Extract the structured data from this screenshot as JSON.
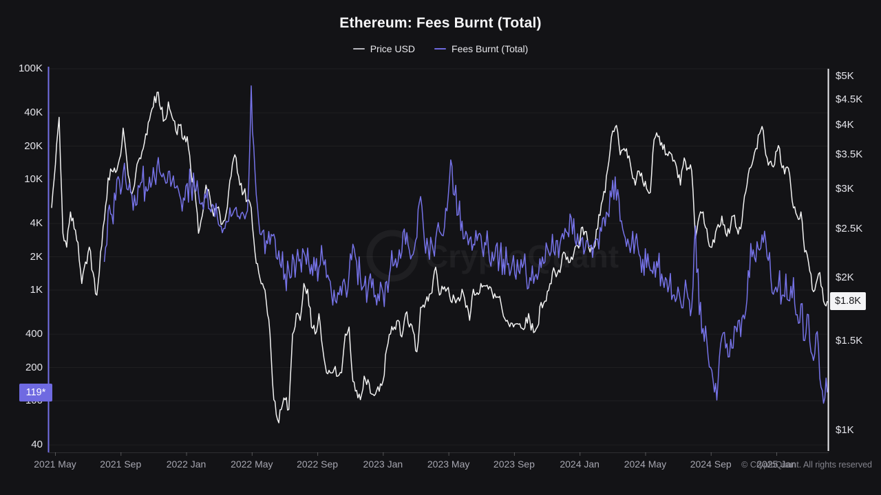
{
  "title": "Ethereum: Fees Burnt (Total)",
  "legend": [
    {
      "label": "Price USD",
      "color": "#b9b9bf"
    },
    {
      "label": "Fees Burnt (Total)",
      "color": "#6f6ae1"
    }
  ],
  "watermark": "CryptoQuant",
  "footer": "© CryptoQuant. All rights reserved",
  "colors": {
    "background": "#131316",
    "price_line": "#f3f3f3",
    "fees_line": "#7673e8",
    "axis_left": "#7470e8",
    "axis_right": "#ececf0",
    "grid": "rgba(255,255,255,0.05)"
  },
  "axes": {
    "left": {
      "scale": "log",
      "ticks": [
        {
          "label": "100K",
          "value": 100000
        },
        {
          "label": "40K",
          "value": 40000
        },
        {
          "label": "20K",
          "value": 20000
        },
        {
          "label": "10K",
          "value": 10000
        },
        {
          "label": "4K",
          "value": 4000
        },
        {
          "label": "2K",
          "value": 2000
        },
        {
          "label": "1K",
          "value": 1000
        },
        {
          "label": "400",
          "value": 400
        },
        {
          "label": "200",
          "value": 200
        },
        {
          "label": "100",
          "value": 100
        },
        {
          "label": "40",
          "value": 40
        }
      ],
      "current_badge": {
        "label": "119*",
        "value": 119,
        "bg": "#6f6ae1",
        "fg": "#ffffff"
      }
    },
    "right": {
      "scale": "log",
      "ticks": [
        {
          "label": "$5K",
          "value": 5000
        },
        {
          "label": "$4.5K",
          "value": 4500
        },
        {
          "label": "$4K",
          "value": 4000
        },
        {
          "label": "$3.5K",
          "value": 3500
        },
        {
          "label": "$3K",
          "value": 3000
        },
        {
          "label": "$2.5K",
          "value": 2500
        },
        {
          "label": "$2K",
          "value": 2000
        },
        {
          "label": "$1.5K",
          "value": 1500
        },
        {
          "label": "$1K",
          "value": 1000
        }
      ],
      "current_badge": {
        "label": "$1.8K",
        "value": 1800,
        "bg": "#f4f4f6",
        "fg": "#18181b"
      }
    },
    "x": {
      "labels": [
        "2021 May",
        "2021 Sep",
        "2022 Jan",
        "2022 May",
        "2022 Sep",
        "2023 Jan",
        "2023 May",
        "2023 Sep",
        "2024 Jan",
        "2024 May",
        "2024 Sep",
        "2025 Jan"
      ]
    }
  },
  "chart_data": {
    "type": "line",
    "title": "Ethereum: Fees Burnt (Total)",
    "x_start": "2021-04-25",
    "x_interval": "weekly",
    "x_tick_labels": [
      "2021 May",
      "2021 Sep",
      "2022 Jan",
      "2022 May",
      "2022 Sep",
      "2023 Jan",
      "2023 May",
      "2023 Sep",
      "2024 Jan",
      "2024 May",
      "2024 Sep",
      "2025 Jan"
    ],
    "grid": "horizontal-faint",
    "legend_position": "top",
    "left_axis": {
      "label": "Fees Burnt (Total)",
      "scale": "log",
      "tick_values": [
        100000,
        40000,
        20000,
        10000,
        4000,
        2000,
        1000,
        400,
        200,
        100,
        40
      ],
      "last_value": 119
    },
    "right_axis": {
      "label": "Price USD",
      "scale": "log",
      "tick_values": [
        5000,
        4500,
        4000,
        3500,
        3000,
        2500,
        2000,
        1500,
        1000
      ],
      "last_value": 1800
    },
    "series": [
      {
        "name": "Price USD",
        "axis": "right",
        "unit": "USD",
        "color": "#f3f3f3",
        "values": [
          2750,
          3350,
          4150,
          2450,
          2300,
          2700,
          2500,
          2350,
          1950,
          2150,
          2300,
          2050,
          1850,
          2250,
          2600,
          3150,
          3250,
          3230,
          3430,
          3950,
          3400,
          2950,
          3050,
          3400,
          3550,
          3850,
          4100,
          4350,
          4650,
          4300,
          4100,
          4450,
          4150,
          3900,
          4000,
          3750,
          3800,
          3250,
          3000,
          2450,
          2650,
          3050,
          2900,
          2650,
          2750,
          2550,
          2600,
          2950,
          3350,
          3450,
          3050,
          2950,
          2850,
          2750,
          2250,
          2050,
          1950,
          1800,
          1550,
          1150,
          1050,
          1100,
          1150,
          1100,
          1550,
          1700,
          1650,
          1950,
          1900,
          1600,
          1550,
          1700,
          1450,
          1300,
          1300,
          1320,
          1280,
          1300,
          1550,
          1600,
          1250,
          1200,
          1150,
          1280,
          1260,
          1180,
          1180,
          1195,
          1250,
          1450,
          1550,
          1600,
          1650,
          1530,
          1700,
          1600,
          1570,
          1430,
          1750,
          1750,
          1800,
          1870,
          2100,
          1850,
          1900,
          1900,
          1800,
          1820,
          1830,
          1900,
          1750,
          1650,
          1900,
          1870,
          1950,
          1930,
          1900,
          1870,
          1830,
          1840,
          1680,
          1650,
          1630,
          1620,
          1620,
          1590,
          1670,
          1650,
          1560,
          1600,
          1790,
          1800,
          1890,
          2050,
          2010,
          2050,
          2250,
          2200,
          2200,
          2300,
          2290,
          2520,
          2470,
          2250,
          2290,
          2500,
          2800,
          2950,
          3400,
          3900,
          4000,
          3500,
          3600,
          3450,
          3250,
          3050,
          3250,
          3100,
          3000,
          2950,
          3750,
          3800,
          3700,
          3500,
          3550,
          3400,
          3300,
          3050,
          3450,
          3300,
          3250,
          2400,
          2650,
          2700,
          2500,
          2300,
          2350,
          2550,
          2650,
          2450,
          2450,
          2650,
          2500,
          2500,
          2900,
          3200,
          3350,
          3600,
          3850,
          3900,
          3450,
          3400,
          3350,
          3650,
          3300,
          3300,
          3200,
          2750,
          2650,
          2700,
          2250,
          2150,
          1900,
          1950,
          2050,
          1800,
          1800
        ]
      },
      {
        "name": "Fees Burnt (Total)",
        "axis": "left",
        "unit": "ETH",
        "color": "#7673e8",
        "values": [
          null,
          null,
          null,
          null,
          null,
          null,
          null,
          null,
          null,
          null,
          null,
          null,
          null,
          null,
          1800,
          5200,
          4800,
          6500,
          9800,
          11500,
          8200,
          7800,
          7200,
          8800,
          9500,
          8600,
          10500,
          12800,
          13200,
          11000,
          10200,
          11800,
          9600,
          8400,
          7200,
          6800,
          9200,
          8800,
          8200,
          7400,
          6200,
          6800,
          5400,
          5800,
          4600,
          3800,
          3600,
          4200,
          4800,
          5600,
          4400,
          4800,
          5200,
          70000,
          12000,
          4200,
          3400,
          2800,
          2600,
          3200,
          1900,
          1600,
          1400,
          1500,
          2100,
          1800,
          1900,
          2200,
          2400,
          1700,
          1500,
          1600,
          1900,
          1300,
          1200,
          1000,
          950,
          900,
          1100,
          1400,
          2600,
          1800,
          1300,
          1100,
          1000,
          1050,
          900,
          800,
          950,
          1200,
          1600,
          1700,
          1800,
          2200,
          2600,
          2300,
          2100,
          3000,
          7000,
          2800,
          2400,
          2600,
          2900,
          3400,
          3100,
          5200,
          15000,
          7200,
          4800,
          4200,
          3400,
          2900,
          2600,
          2800,
          3100,
          2700,
          2400,
          2200,
          2500,
          2000,
          1900,
          1700,
          1500,
          1400,
          1500,
          1600,
          1400,
          1300,
          1150,
          1250,
          1600,
          1800,
          2200,
          3200,
          2800,
          2600,
          2900,
          3300,
          4500,
          2800,
          2600,
          3000,
          2800,
          2500,
          2600,
          2900,
          3400,
          3800,
          4600,
          9800,
          6500,
          4200,
          3200,
          2900,
          2600,
          2800,
          2100,
          1900,
          1600,
          1500,
          1800,
          1600,
          1400,
          1300,
          1100,
          900,
          850,
          800,
          900,
          850,
          700,
          3800,
          600,
          450,
          350,
          200,
          120,
          150,
          380,
          300,
          250,
          300,
          420,
          380,
          550,
          1500,
          2000,
          1800,
          2300,
          2700,
          2000,
          1300,
          1000,
          1100,
          900,
          1400,
          800,
          1300,
          600,
          750,
          350,
          600,
          260,
          400,
          160,
          95,
          119
        ]
      }
    ]
  }
}
